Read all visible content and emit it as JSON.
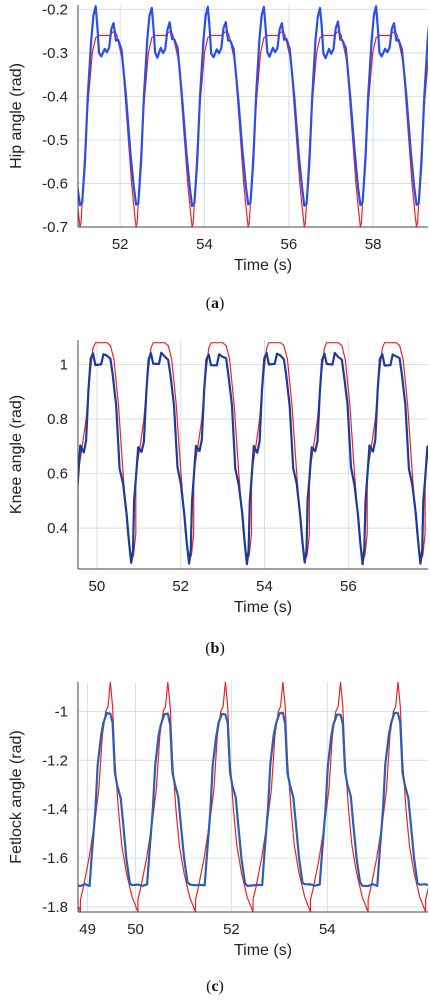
{
  "colors": {
    "reference": "#ee2222",
    "measured_light": "#2b4fe6",
    "measured_dark": "#1a3c9a",
    "grid": "#d9dfe8",
    "frame": "#444444"
  },
  "chart_data": [
    {
      "type": "line",
      "caption": "a",
      "xlabel": "Time (s)",
      "ylabel": "Hip angle (rad)",
      "xlim": [
        51,
        59.3
      ],
      "ylim": [
        -0.7,
        -0.19
      ],
      "xticks": [
        52,
        54,
        56,
        58
      ],
      "xtick_labels": [
        "52",
        "54",
        "56",
        "58"
      ],
      "yticks": [
        -0.2,
        -0.3,
        -0.4,
        -0.5,
        -0.6,
        -0.7
      ],
      "ytick_labels": [
        "-0.2",
        "-0.3",
        "-0.4",
        "-0.5",
        "-0.6",
        "-0.7"
      ],
      "period": 1.33,
      "phase_start": 51.1,
      "series": [
        {
          "color": "#ee2222",
          "width": 1.2,
          "shape": [
            [
              0,
              -0.64
            ],
            [
              0.08,
              -0.45
            ],
            [
              0.18,
              -0.3
            ],
            [
              0.24,
              -0.265
            ],
            [
              0.3,
              -0.26
            ],
            [
              0.48,
              -0.26
            ],
            [
              0.52,
              -0.255
            ],
            [
              0.58,
              -0.25
            ],
            [
              0.62,
              -0.26
            ],
            [
              0.72,
              -0.32
            ],
            [
              0.8,
              -0.46
            ],
            [
              0.88,
              -0.6
            ],
            [
              0.93,
              -0.665
            ],
            [
              0.96,
              -0.7
            ],
            [
              0.98,
              -0.69
            ],
            [
              1.0,
              -0.64
            ]
          ]
        },
        {
          "color": "#2b4fe6",
          "width": 2.2,
          "shape": [
            [
              0,
              -0.645
            ],
            [
              0.05,
              -0.55
            ],
            [
              0.1,
              -0.4
            ],
            [
              0.16,
              -0.27
            ],
            [
              0.2,
              -0.215
            ],
            [
              0.24,
              -0.195
            ],
            [
              0.27,
              -0.24
            ],
            [
              0.3,
              -0.3
            ],
            [
              0.34,
              -0.31
            ],
            [
              0.4,
              -0.29
            ],
            [
              0.44,
              -0.3
            ],
            [
              0.48,
              -0.29
            ],
            [
              0.52,
              -0.245
            ],
            [
              0.56,
              -0.23
            ],
            [
              0.6,
              -0.27
            ],
            [
              0.64,
              -0.27
            ],
            [
              0.7,
              -0.29
            ],
            [
              0.78,
              -0.4
            ],
            [
              0.86,
              -0.53
            ],
            [
              0.92,
              -0.61
            ],
            [
              0.96,
              -0.65
            ],
            [
              1.0,
              -0.645
            ]
          ]
        }
      ]
    },
    {
      "type": "line",
      "caption": "b",
      "xlabel": "Time (s)",
      "ylabel": "Knee angle (rad)",
      "xlim": [
        49.55,
        57.9
      ],
      "ylim": [
        0.25,
        1.09
      ],
      "xticks": [
        50,
        52,
        54,
        56
      ],
      "xtick_labels": [
        "50",
        "52",
        "54",
        "56"
      ],
      "yticks": [
        0.4,
        0.6,
        0.8,
        1.0
      ],
      "ytick_labels": [
        "0.4",
        "0.6",
        "0.8",
        "1"
      ],
      "period": 1.38,
      "phase_start": 49.55,
      "series": [
        {
          "color": "#ee2222",
          "width": 1.2,
          "shape": [
            [
              0,
              0.6
            ],
            [
              0.08,
              0.71
            ],
            [
              0.14,
              0.8
            ],
            [
              0.2,
              0.95
            ],
            [
              0.26,
              1.06
            ],
            [
              0.3,
              1.08
            ],
            [
              0.5,
              1.08
            ],
            [
              0.56,
              1.07
            ],
            [
              0.62,
              1.02
            ],
            [
              0.7,
              0.85
            ],
            [
              0.78,
              0.6
            ],
            [
              0.86,
              0.38
            ],
            [
              0.92,
              0.28
            ],
            [
              0.96,
              0.3
            ],
            [
              1.0,
              0.38
            ]
          ]
        },
        {
          "color": "#1a3c9a",
          "width": 2.2,
          "shape": [
            [
              0,
              0.58
            ],
            [
              0.04,
              0.7
            ],
            [
              0.1,
              0.68
            ],
            [
              0.14,
              0.72
            ],
            [
              0.18,
              0.9
            ],
            [
              0.22,
              1.02
            ],
            [
              0.26,
              1.04
            ],
            [
              0.3,
              1.0
            ],
            [
              0.4,
              1.0
            ],
            [
              0.44,
              1.04
            ],
            [
              0.5,
              1.03
            ],
            [
              0.56,
              1.02
            ],
            [
              0.6,
              0.96
            ],
            [
              0.66,
              0.85
            ],
            [
              0.72,
              0.62
            ],
            [
              0.78,
              0.56
            ],
            [
              0.84,
              0.45
            ],
            [
              0.88,
              0.35
            ],
            [
              0.92,
              0.27
            ],
            [
              0.95,
              0.32
            ],
            [
              0.97,
              0.5
            ],
            [
              1.0,
              0.58
            ]
          ]
        }
      ]
    },
    {
      "type": "line",
      "caption": "c",
      "xlabel": "Time (s)",
      "ylabel": "Fetlock angle (rad)",
      "xlim": [
        48.8,
        56.1
      ],
      "ylim": [
        -1.82,
        -0.88
      ],
      "xticks": [
        49,
        50,
        52,
        54
      ],
      "xtick_labels": [
        "49",
        "50",
        "52",
        "54"
      ],
      "yticks": [
        -1.0,
        -1.2,
        -1.4,
        -1.6,
        -1.8
      ],
      "ytick_labels": [
        "-1",
        "-1.2",
        "-1.4",
        "-1.6",
        "-1.8"
      ],
      "period": 1.2,
      "phase_start": 48.85,
      "series": [
        {
          "color": "#ee2222",
          "width": 1.2,
          "shape": [
            [
              0,
              -1.77
            ],
            [
              0.05,
              -1.72
            ],
            [
              0.15,
              -1.6
            ],
            [
              0.25,
              -1.45
            ],
            [
              0.32,
              -1.32
            ],
            [
              0.38,
              -1.1
            ],
            [
              0.44,
              -1.0
            ],
            [
              0.48,
              -0.98
            ],
            [
              0.52,
              -0.88
            ],
            [
              0.56,
              -0.98
            ],
            [
              0.6,
              -1.2
            ],
            [
              0.66,
              -1.4
            ],
            [
              0.72,
              -1.55
            ],
            [
              0.8,
              -1.66
            ],
            [
              0.9,
              -1.76
            ],
            [
              1.0,
              -1.82
            ]
          ]
        },
        {
          "color": "#2b5fb0",
          "width": 2.2,
          "shape": [
            [
              0,
              -1.71
            ],
            [
              0.08,
              -1.71
            ],
            [
              0.16,
              -1.71
            ],
            [
              0.2,
              -1.58
            ],
            [
              0.26,
              -1.4
            ],
            [
              0.3,
              -1.22
            ],
            [
              0.36,
              -1.1
            ],
            [
              0.4,
              -1.05
            ],
            [
              0.46,
              -1.01
            ],
            [
              0.52,
              -1.01
            ],
            [
              0.56,
              -1.05
            ],
            [
              0.6,
              -1.25
            ],
            [
              0.64,
              -1.3
            ],
            [
              0.7,
              -1.35
            ],
            [
              0.74,
              -1.45
            ],
            [
              0.8,
              -1.6
            ],
            [
              0.86,
              -1.7
            ],
            [
              0.9,
              -1.71
            ],
            [
              1.0,
              -1.71
            ]
          ]
        }
      ]
    }
  ]
}
